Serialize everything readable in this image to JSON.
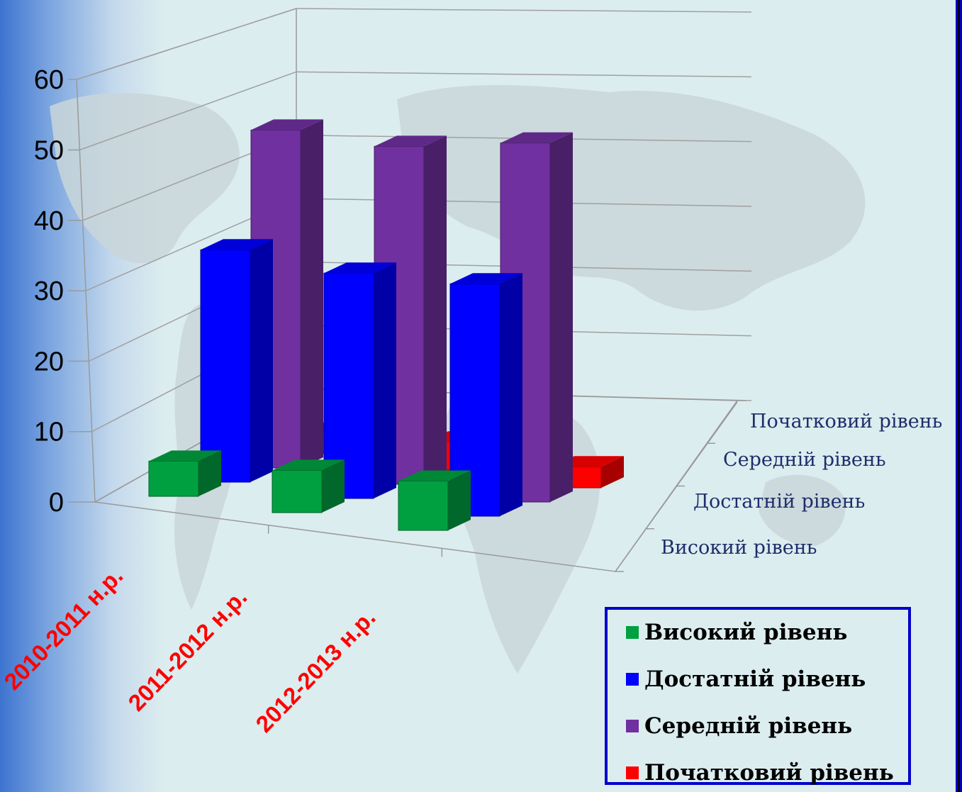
{
  "chart_data": {
    "type": "bar",
    "categories": [
      "2010-2011 н.р.",
      "2011-2012 н.р.",
      "2012-2013 н.р."
    ],
    "series": [
      {
        "name": "Високий рівень",
        "color": "#00a040",
        "values": [
          5,
          6,
          7
        ]
      },
      {
        "name": "Достатній рівень",
        "color": "#0000ff",
        "values": [
          33,
          32,
          33
        ]
      },
      {
        "name": "Середній рівень",
        "color": "#7030a0",
        "values": [
          48,
          48,
          51
        ]
      },
      {
        "name": "Початковий рівень",
        "color": "#ff0000",
        "values": [
          3,
          4,
          3
        ]
      }
    ],
    "yticks": [
      "0",
      "10",
      "20",
      "30",
      "40",
      "50",
      "60"
    ],
    "ylim": [
      0,
      60
    ],
    "depth_labels": [
      "Високий рівень",
      "Достатній рівень",
      "Середній рівень",
      "Початковий рівень"
    ],
    "category_label_color": "#ff0000",
    "grid": true,
    "legend_position": "bottom-right"
  }
}
